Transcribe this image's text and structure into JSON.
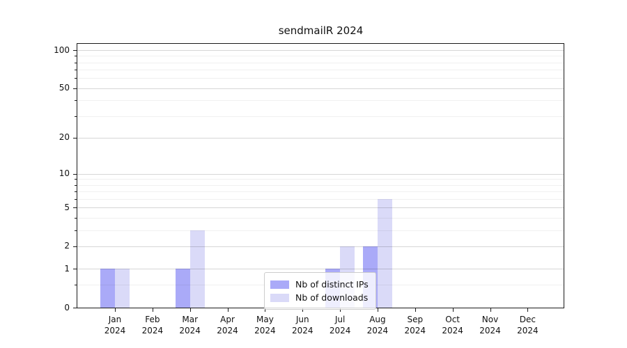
{
  "chart_data": {
    "type": "bar",
    "title": "sendmailR 2024",
    "categories": [
      "Jan",
      "Feb",
      "Mar",
      "Apr",
      "May",
      "Jun",
      "Jul",
      "Aug",
      "Sep",
      "Oct",
      "Nov",
      "Dec"
    ],
    "year": "2024",
    "series": [
      {
        "name": "Nb of distinct IPs",
        "color": "#aaaaf8",
        "values": [
          1,
          0,
          1,
          0,
          0,
          0,
          1,
          2,
          0,
          0,
          0,
          0
        ]
      },
      {
        "name": "Nb of downloads",
        "color": "#dadaf8",
        "values": [
          1,
          0,
          3,
          0,
          0,
          0,
          2,
          6,
          0,
          0,
          0,
          0
        ]
      }
    ],
    "yticks": [
      0,
      1,
      2,
      5,
      10,
      20,
      50,
      100
    ],
    "yscale": "log1p",
    "ylim": [
      0,
      100
    ],
    "grid": true,
    "legend_position": "lower center"
  }
}
